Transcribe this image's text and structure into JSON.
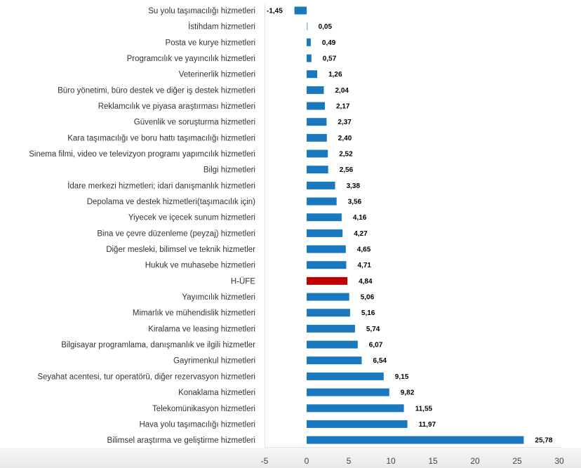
{
  "chart_data": {
    "type": "bar",
    "orientation": "horizontal",
    "title": "",
    "xlabel": "",
    "ylabel": "",
    "xlim": [
      -5,
      30
    ],
    "xticks": [
      -5,
      0,
      5,
      10,
      15,
      20,
      25,
      30
    ],
    "xtick_labels": [
      "-5",
      "0",
      "5",
      "10",
      "15",
      "20",
      "25",
      "30"
    ],
    "grid": false,
    "legend": "none",
    "bar_color": "#1a78be",
    "highlight_color": "#c00000",
    "small_bar_color": "#8ec1e4",
    "highlight_category": "H-ÜFE",
    "categories": [
      "Su yolu taşımacılığı hizmetleri",
      "İstihdam hizmetleri",
      "Posta ve kurye hizmetleri",
      "Programcılık ve yayıncılık hizmetleri",
      "Veterinerlik hizmetleri",
      "Büro yönetimi, büro destek ve diğer iş destek hizmetleri",
      "Reklamcılık ve piyasa araştırması hizmetleri",
      "Güvenlik ve soruşturma hizmetleri",
      "Kara taşımacılığı ve boru hattı taşımacılığı hizmetleri",
      "Sinema filmi, video ve televizyon programı yapımcılık hizmetleri",
      "Bilgi hizmetleri",
      "İdare merkezi hizmetleri; idari danışmanlık hizmetleri",
      "Depolama ve destek hizmetleri(taşımacılık için)",
      "Yiyecek ve içecek sunum hizmetleri",
      "Bina ve çevre düzenleme (peyzaj) hizmetleri",
      "Diğer mesleki, bilimsel ve teknik hizmetler",
      "Hukuk ve muhasebe hizmetleri",
      "H-ÜFE",
      "Yayımcılık hizmetleri",
      "Mimarlık ve mühendislik hizmetleri",
      "Kiralama ve leasing hizmetleri",
      "Bilgisayar programlama, danışmanlık ve ilgili hizmetler",
      "Gayrimenkul hizmetleri",
      "Seyahat acentesi, tur operatörü, diğer rezervasyon hizmetleri",
      "Konaklama hizmetleri",
      "Telekomünikasyon hizmetleri",
      "Hava yolu taşımacılığı hizmetleri",
      "Bilimsel araştırma ve geliştirme hizmetleri"
    ],
    "values": [
      -1.45,
      0.05,
      0.49,
      0.57,
      1.26,
      2.04,
      2.17,
      2.37,
      2.4,
      2.52,
      2.56,
      3.38,
      3.56,
      4.16,
      4.27,
      4.65,
      4.71,
      4.84,
      5.06,
      5.16,
      5.74,
      6.07,
      6.54,
      9.15,
      9.82,
      11.55,
      11.97,
      25.78
    ],
    "value_labels": [
      "-1,45",
      "0,05",
      "0,49",
      "0,57",
      "1,26",
      "2,04",
      "2,17",
      "2,37",
      "2,40",
      "2,52",
      "2,56",
      "3,38",
      "3,56",
      "4,16",
      "4,27",
      "4,65",
      "4,71",
      "4,84",
      "5,06",
      "5,16",
      "5,74",
      "6,07",
      "6,54",
      "9,15",
      "9,82",
      "11,55",
      "11,97",
      "25,78"
    ]
  }
}
